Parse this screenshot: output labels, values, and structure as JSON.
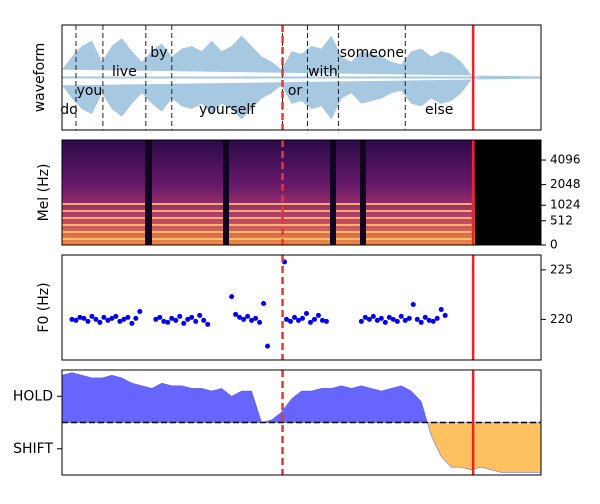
{
  "chart_data": [
    {
      "type": "waveform",
      "ylabel": "waveform",
      "xlim": [
        0,
        4.8
      ],
      "ylim": [
        -1,
        1
      ],
      "color": "#a6c8e0",
      "x": [
        0,
        0.1,
        0.2,
        0.3,
        0.4,
        0.5,
        0.6,
        0.7,
        0.8,
        0.9,
        1.0,
        1.1,
        1.2,
        1.3,
        1.4,
        1.5,
        1.6,
        1.7,
        1.8,
        1.9,
        2.0,
        2.1,
        2.2,
        2.3,
        2.4,
        2.5,
        2.6,
        2.7,
        2.8,
        2.9,
        3.0,
        3.1,
        3.2,
        3.3,
        3.4,
        3.5,
        3.6,
        3.7,
        3.8,
        3.9,
        4.0,
        4.1,
        4.2,
        4.3,
        4.4,
        4.5,
        4.6,
        4.7,
        4.8
      ],
      "values": [
        0.15,
        0.4,
        0.6,
        0.7,
        0.3,
        0.6,
        0.75,
        0.5,
        0.3,
        0.5,
        0.65,
        0.4,
        0.55,
        0.6,
        0.5,
        0.7,
        0.5,
        0.6,
        0.8,
        0.6,
        0.4,
        0.3,
        0.15,
        0.5,
        0.45,
        0.6,
        0.55,
        0.8,
        0.4,
        0.3,
        0.5,
        0.45,
        0.4,
        0.3,
        0.25,
        0.5,
        0.55,
        0.4,
        0.5,
        0.45,
        0.3,
        0.05,
        0.02,
        0.02,
        0.02,
        0.02,
        0.02,
        0.02,
        0.02
      ],
      "words": [
        {
          "text": "do",
          "start": 0,
          "end": 0.14
        },
        {
          "text": "you",
          "start": 0.14,
          "end": 0.41
        },
        {
          "text": "live",
          "start": 0.41,
          "end": 0.84
        },
        {
          "text": "by",
          "start": 0.84,
          "end": 1.1
        },
        {
          "text": "yourself",
          "start": 1.1,
          "end": 2.21
        },
        {
          "text": "or",
          "start": 2.21,
          "end": 2.46
        },
        {
          "text": "with",
          "start": 2.46,
          "end": 2.77
        },
        {
          "text": "someone",
          "start": 2.77,
          "end": 3.44
        },
        {
          "text": "else",
          "start": 3.44,
          "end": 4.12
        }
      ],
      "markers": [
        {
          "time": 2.21,
          "color": "#ee3333",
          "style": "dashed"
        },
        {
          "time": 4.12,
          "color": "#ee2222",
          "style": "solid"
        }
      ]
    },
    {
      "type": "spectrogram",
      "ylabel": "Mel (Hz)",
      "xlim": [
        0,
        4.8
      ],
      "ylim": [
        0,
        6850
      ],
      "yscale": "mel",
      "yaxis_side": "right",
      "yticks": [
        0,
        512,
        1024,
        2048,
        4096
      ],
      "markers": [
        {
          "time": 2.21,
          "color": "#ee3333",
          "style": "dashed"
        },
        {
          "time": 4.12,
          "color": "#ee2222",
          "style": "solid"
        }
      ]
    },
    {
      "type": "scatter",
      "ylabel": "F0 (Hz)",
      "xlim": [
        0,
        4.8
      ],
      "ylim": [
        215.9,
        226.5
      ],
      "yaxis_side": "right",
      "yticks": [
        220,
        225
      ],
      "color": "#0000ee",
      "x": [
        0.1,
        0.14,
        0.18,
        0.22,
        0.26,
        0.3,
        0.34,
        0.38,
        0.42,
        0.46,
        0.5,
        0.54,
        0.58,
        0.62,
        0.66,
        0.7,
        0.74,
        0.78,
        0.94,
        0.98,
        1.02,
        1.06,
        1.1,
        1.14,
        1.18,
        1.22,
        1.26,
        1.3,
        1.34,
        1.38,
        1.42,
        1.46,
        1.7,
        1.74,
        1.78,
        1.82,
        1.86,
        1.9,
        1.94,
        1.98,
        2.02,
        2.06,
        2.23,
        2.25,
        2.29,
        2.33,
        2.37,
        2.41,
        2.45,
        2.49,
        2.53,
        2.57,
        2.61,
        2.65,
        3.0,
        3.04,
        3.08,
        3.12,
        3.16,
        3.2,
        3.24,
        3.28,
        3.32,
        3.36,
        3.4,
        3.44,
        3.48,
        3.52,
        3.56,
        3.6,
        3.64,
        3.68,
        3.72,
        3.76,
        3.8,
        3.84
      ],
      "values": [
        220.0,
        219.9,
        220.2,
        220.1,
        219.8,
        220.3,
        220.0,
        219.7,
        220.2,
        219.9,
        220.1,
        220.3,
        219.8,
        220.0,
        220.2,
        219.6,
        220.1,
        220.8,
        220.0,
        220.2,
        219.8,
        219.7,
        220.1,
        219.9,
        220.3,
        219.6,
        220.0,
        220.2,
        219.8,
        220.4,
        219.9,
        219.5,
        222.3,
        220.5,
        220.2,
        220.0,
        220.3,
        219.9,
        220.1,
        219.7,
        221.6,
        217.3,
        225.8,
        220.0,
        219.8,
        220.2,
        219.9,
        220.1,
        220.6,
        219.7,
        220.0,
        220.4,
        219.9,
        219.8,
        219.8,
        220.2,
        220.0,
        220.3,
        219.9,
        220.1,
        219.7,
        220.2,
        220.0,
        219.8,
        220.3,
        219.9,
        220.1,
        221.5,
        220.0,
        219.7,
        220.2,
        219.9,
        219.8,
        220.1,
        221.0,
        220.4
      ],
      "markers": [
        {
          "time": 2.21,
          "color": "#ee3333",
          "style": "dashed"
        },
        {
          "time": 4.12,
          "color": "#ee2222",
          "style": "solid"
        }
      ]
    },
    {
      "type": "area",
      "xlim": [
        0,
        4.8
      ],
      "ylim": [
        -2,
        2
      ],
      "yaxis_side": "left",
      "colors": [
        "#6666ff",
        "#ffc05f"
      ],
      "yticks": [
        {
          "value": 1,
          "label": "HOLD"
        },
        {
          "value": -1,
          "label": "SHIFT"
        }
      ],
      "zero_line": true,
      "x": [
        0,
        0.1,
        0.2,
        0.3,
        0.4,
        0.5,
        0.6,
        0.7,
        0.8,
        0.9,
        1.0,
        1.1,
        1.2,
        1.3,
        1.4,
        1.5,
        1.6,
        1.7,
        1.8,
        1.9,
        2.0,
        2.1,
        2.2,
        2.3,
        2.4,
        2.5,
        2.6,
        2.7,
        2.8,
        2.9,
        3.0,
        3.1,
        3.2,
        3.3,
        3.4,
        3.5,
        3.6,
        3.7,
        3.8,
        3.9,
        4.0,
        4.1,
        4.2,
        4.3,
        4.4,
        4.5,
        4.6,
        4.7,
        4.8
      ],
      "values": [
        1.8,
        1.9,
        1.8,
        1.7,
        1.7,
        1.8,
        1.7,
        1.5,
        1.4,
        1.3,
        1.5,
        1.4,
        1.4,
        1.3,
        1.3,
        1.2,
        1.3,
        1.0,
        1.2,
        1.2,
        0.0,
        0.1,
        0.4,
        0.9,
        1.2,
        1.2,
        1.3,
        1.3,
        1.4,
        1.3,
        1.4,
        1.3,
        1.2,
        1.3,
        1.4,
        1.2,
        0.8,
        -0.5,
        -1.3,
        -1.7,
        -1.7,
        -1.8,
        -1.7,
        -1.8,
        -1.9,
        -1.9,
        -1.9,
        -1.9,
        -1.9
      ],
      "markers": [
        {
          "time": 2.21,
          "color": "#ee3333",
          "style": "dashed"
        },
        {
          "time": 4.12,
          "color": "#ee2222",
          "style": "solid"
        }
      ]
    }
  ]
}
